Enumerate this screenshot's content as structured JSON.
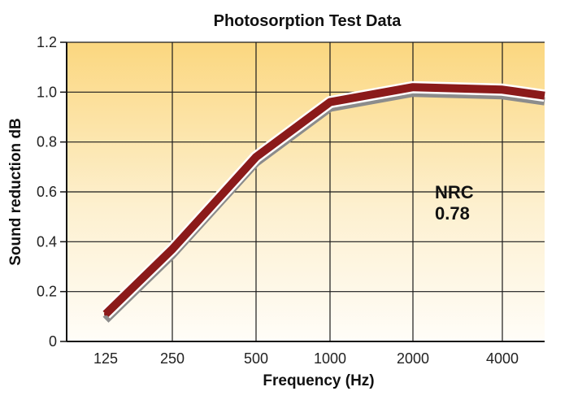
{
  "chart_data": {
    "type": "line",
    "title": "Photosorption Test Data",
    "xlabel": "Frequency (Hz)",
    "ylabel": "Sound reduction dB",
    "x_ticks": [
      "125",
      "250",
      "500",
      "1000",
      "2000",
      "4000"
    ],
    "y_ticks": [
      "0",
      "0.2",
      "0.4",
      "0.6",
      "0.8",
      "1.0",
      "1.2"
    ],
    "ylim": [
      0,
      1.2
    ],
    "grid": true,
    "series": [
      {
        "x": [
          "125",
          "250",
          "500",
          "1000",
          "2000",
          "4000"
        ],
        "values": [
          0.11,
          0.37,
          0.74,
          0.96,
          1.02,
          1.01
        ],
        "color": "#8b1a1a"
      }
    ],
    "annotation": {
      "line1": "NRC",
      "line2": "0.78"
    },
    "colors": {
      "line": "#8b1a1a",
      "shadow": "#8c8c8c",
      "background_top": "#fbd77f",
      "background_bottom": "#fffdf8",
      "grid": "#1a1a1a"
    }
  }
}
